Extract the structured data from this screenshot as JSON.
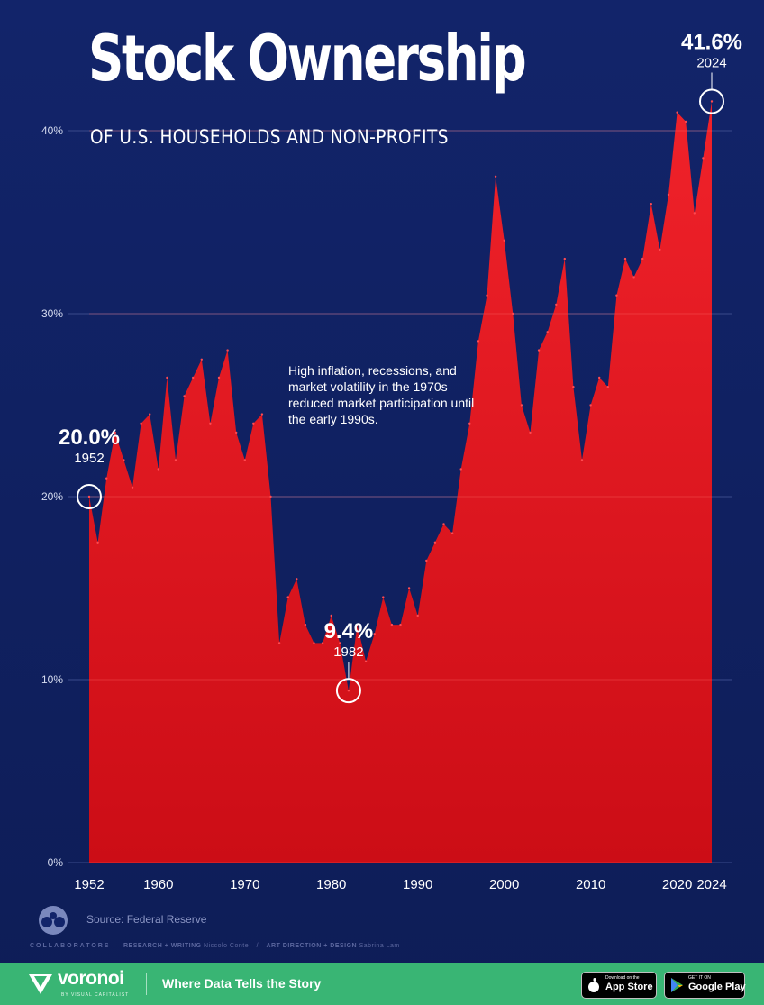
{
  "header": {
    "title": "Stock Ownership",
    "subtitle": "OF U.S. HOUSEHOLDS AND NON-PROFITS"
  },
  "annotation": {
    "text": "High inflation, recessions, and market volatility in the 1970s reduced market participation until the early 1990s."
  },
  "source": {
    "text": "Source: Federal Reserve"
  },
  "collaborators": {
    "label": "COLLABORATORS",
    "research_label": "RESEARCH + WRITING",
    "research_name": "Niccolo Conte",
    "design_label": "ART DIRECTION + DESIGN",
    "design_name": "Sabrina Lam"
  },
  "footer": {
    "brand": "voronoi",
    "brand_sub": "BY VISUAL CAPITALIST",
    "tagline": "Where Data Tells the Story",
    "apple_small": "Download on the",
    "apple_store": "App Store",
    "google_small": "GET IT ON",
    "google_store": "Google Play"
  },
  "colors": {
    "background": "#12246a",
    "area": "#e8141c",
    "grid": "#3a4a8a",
    "footer": "#39b574"
  },
  "chart_data": {
    "type": "area",
    "title": "Stock Ownership",
    "subtitle": "OF U.S. HOUSEHOLDS AND NON-PROFITS",
    "xlabel": "",
    "ylabel": "",
    "xlim": [
      1952,
      2024
    ],
    "ylim": [
      0,
      40
    ],
    "y_unit": "%",
    "grid": true,
    "x_ticks": [
      1952,
      1960,
      1970,
      1980,
      1990,
      2000,
      2010,
      2020,
      2024
    ],
    "y_ticks": [
      0,
      10,
      20,
      30,
      40
    ],
    "x": [
      1952,
      1953,
      1954,
      1955,
      1956,
      1957,
      1958,
      1959,
      1960,
      1961,
      1962,
      1963,
      1964,
      1965,
      1966,
      1967,
      1968,
      1969,
      1970,
      1971,
      1972,
      1973,
      1974,
      1975,
      1976,
      1977,
      1978,
      1979,
      1980,
      1981,
      1982,
      1983,
      1984,
      1985,
      1986,
      1987,
      1988,
      1989,
      1990,
      1991,
      1992,
      1993,
      1994,
      1995,
      1996,
      1997,
      1998,
      1999,
      2000,
      2001,
      2002,
      2003,
      2004,
      2005,
      2006,
      2007,
      2008,
      2009,
      2010,
      2011,
      2012,
      2013,
      2014,
      2015,
      2016,
      2017,
      2018,
      2019,
      2020,
      2021,
      2022,
      2023,
      2024
    ],
    "values": [
      20.0,
      17.5,
      21.0,
      23.5,
      22.0,
      20.5,
      24.0,
      24.5,
      21.5,
      26.5,
      22.0,
      25.5,
      26.5,
      27.5,
      24.0,
      26.5,
      28.0,
      23.5,
      22.0,
      24.0,
      24.5,
      20.0,
      12.0,
      14.5,
      15.5,
      13.0,
      12.0,
      12.0,
      13.5,
      12.0,
      9.4,
      13.0,
      11.0,
      12.5,
      14.5,
      13.0,
      13.0,
      15.0,
      13.5,
      16.5,
      17.5,
      18.5,
      18.0,
      21.5,
      24.0,
      28.5,
      31.0,
      37.5,
      34.0,
      30.0,
      25.0,
      23.5,
      28.0,
      29.0,
      30.5,
      33.0,
      26.0,
      22.0,
      25.0,
      26.5,
      26.0,
      31.0,
      33.0,
      32.0,
      33.0,
      36.0,
      33.5,
      36.5,
      41.0,
      40.5,
      35.5,
      38.5,
      41.6
    ],
    "callouts": [
      {
        "value": "20.0%",
        "year": "1952",
        "x": 1952,
        "y": 20.0
      },
      {
        "value": "9.4%",
        "year": "1982",
        "x": 1982,
        "y": 9.4
      },
      {
        "value": "41.6%",
        "year": "2024",
        "x": 2024,
        "y": 41.6
      }
    ]
  }
}
